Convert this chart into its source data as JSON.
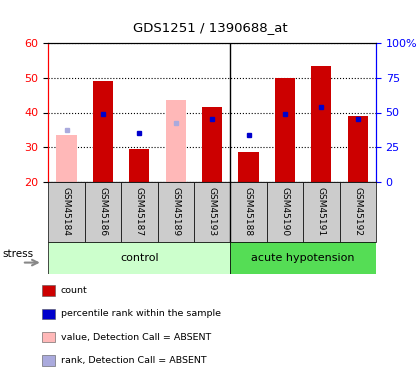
{
  "title": "GDS1251 / 1390688_at",
  "samples": [
    "GSM45184",
    "GSM45186",
    "GSM45187",
    "GSM45189",
    "GSM45193",
    "GSM45188",
    "GSM45190",
    "GSM45191",
    "GSM45192"
  ],
  "red_bar_values": [
    null,
    49.0,
    29.5,
    null,
    41.5,
    28.5,
    50.0,
    53.5,
    39.0
  ],
  "pink_bar_values": [
    33.5,
    null,
    null,
    43.5,
    null,
    null,
    null,
    null,
    null
  ],
  "blue_dot_values": [
    null,
    39.5,
    34.0,
    null,
    38.0,
    33.5,
    39.5,
    41.5,
    38.0
  ],
  "lavender_dot_values": [
    35.0,
    null,
    null,
    37.0,
    null,
    null,
    null,
    null,
    null
  ],
  "ylim": [
    20,
    60
  ],
  "yticks": [
    20,
    30,
    40,
    50,
    60
  ],
  "y2ticks": [
    0,
    25,
    50,
    75,
    100
  ],
  "y2labels": [
    "0",
    "25",
    "50",
    "75",
    "100%"
  ],
  "bar_bottom": 20,
  "red_color": "#cc0000",
  "pink_color": "#ffb8b8",
  "blue_color": "#0000cc",
  "lavender_color": "#aaaadd",
  "ctrl_color_light": "#ccffcc",
  "ctrl_color_dark": "#88ee88",
  "acute_color": "#55dd55",
  "grey_tick_bg": "#cccccc",
  "n_control": 5,
  "n_acute": 4
}
